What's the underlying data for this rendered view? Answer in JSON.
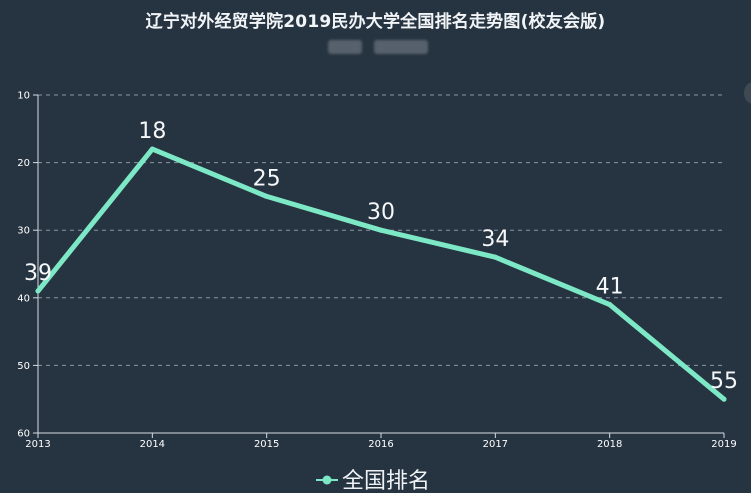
{
  "chart_data": {
    "type": "line",
    "title": "辽宁对外经贸学院2019民办大学全国排名走势图(校友会版)",
    "subtitle": "",
    "categories": [
      "2013",
      "2014",
      "2015",
      "2016",
      "2017",
      "2018",
      "2019"
    ],
    "series": [
      {
        "name": "全国排名",
        "values": [
          39,
          18,
          25,
          30,
          34,
          41,
          55
        ]
      }
    ],
    "y_ticks": [
      "10",
      "20",
      "30",
      "40",
      "50",
      "60"
    ],
    "x_ticks": [
      "2013",
      "2014",
      "2015",
      "2016",
      "2017",
      "2018",
      "2019"
    ],
    "ylim": [
      10,
      60
    ],
    "y_inverted": true,
    "grid": "horizontal-dashed",
    "legend_position": "bottom-center",
    "colors": {
      "background": "#263340",
      "line": "#7de8c5",
      "grid": "#8a96a3",
      "axis": "#d5dde4",
      "text": "#ffffff"
    }
  }
}
